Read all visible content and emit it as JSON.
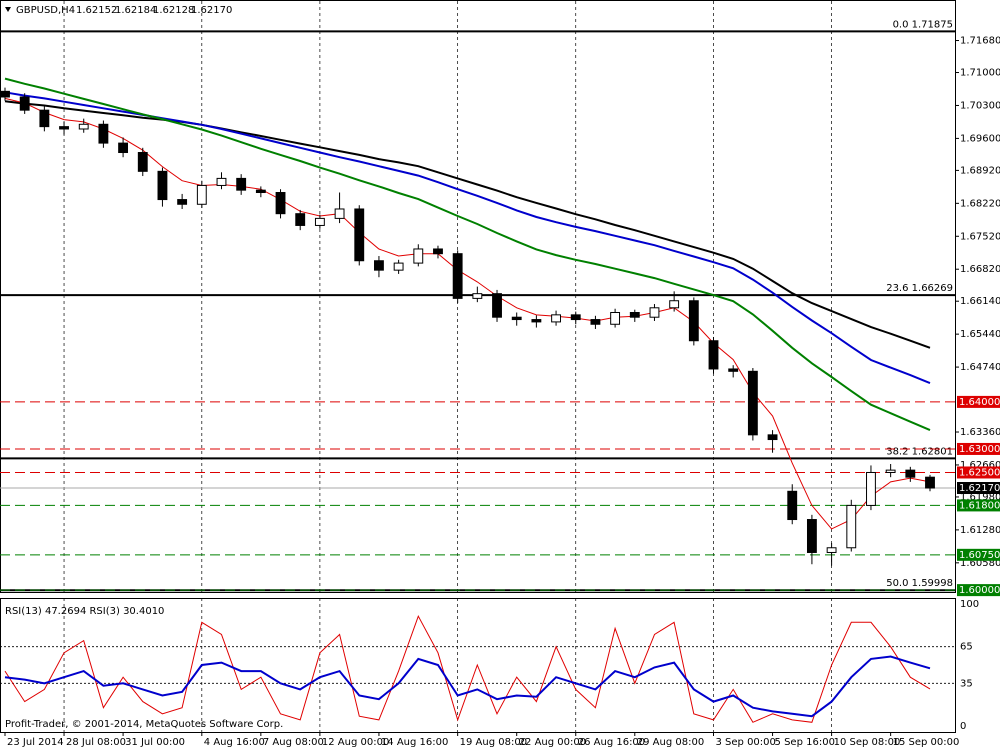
{
  "chart_data": {
    "type": "candlestick",
    "title": "GBPUSD,H4",
    "quote": [
      {
        "value": 1.62152,
        "label": "1.62152"
      },
      {
        "value": 1.62184,
        "label": "1.62184"
      },
      {
        "value": 1.62128,
        "label": "1.62128"
      },
      {
        "value": 1.6217,
        "label": "1.62170"
      }
    ],
    "categories": [
      "23 Jul 2014",
      null,
      null,
      "28 Jul 08:00",
      null,
      null,
      "31 Jul 00:00",
      null,
      null,
      null,
      "4 Aug 16:00",
      null,
      null,
      "7 Aug 08:00",
      null,
      null,
      "12 Aug 00:00",
      null,
      null,
      "14 Aug 16:00",
      null,
      null,
      null,
      "19 Aug 08:00",
      null,
      null,
      "22 Aug 00:00",
      null,
      null,
      "26 Aug 16:00",
      null,
      null,
      "29 Aug 08:00",
      null,
      null,
      null,
      "3 Sep 00:00",
      null,
      null,
      "5 Sep 16:00",
      null,
      null,
      "10 Sep 08:00",
      null,
      null,
      "15 Sep 00:00",
      null,
      null
    ],
    "open": [
      1.706,
      1.7048,
      1.702,
      1.6985,
      1.698,
      1.699,
      1.695,
      1.693,
      1.689,
      1.683,
      1.682,
      1.686,
      1.6875,
      1.685,
      1.6845,
      1.68,
      1.6775,
      1.679,
      1.681,
      1.67,
      1.668,
      1.6695,
      1.6725,
      1.6715,
      1.662,
      1.663,
      1.658,
      1.6575,
      1.657,
      1.6585,
      1.6575,
      1.6565,
      1.659,
      1.658,
      1.66,
      1.6615,
      1.653,
      1.647,
      1.6465,
      1.633,
      1.621,
      1.615,
      1.608,
      1.609,
      1.618,
      1.625,
      1.6255,
      1.624
    ],
    "high": [
      1.7068,
      1.7056,
      1.7028,
      1.6995,
      1.7002,
      1.6998,
      1.6962,
      1.694,
      1.6898,
      1.6842,
      1.687,
      1.6888,
      1.6884,
      1.6858,
      1.6852,
      1.6808,
      1.6798,
      1.6845,
      1.6818,
      1.671,
      1.6702,
      1.6735,
      1.6732,
      1.6722,
      1.6645,
      1.6638,
      1.659,
      1.6584,
      1.6594,
      1.6592,
      1.6583,
      1.6598,
      1.6596,
      1.6608,
      1.6635,
      1.6622,
      1.6538,
      1.6478,
      1.6472,
      1.634,
      1.6225,
      1.616,
      1.61,
      1.6192,
      1.6265,
      1.6268,
      1.6262,
      1.6245
    ],
    "low": [
      1.704,
      1.7012,
      1.6975,
      1.6968,
      1.6972,
      1.694,
      1.692,
      1.688,
      1.6815,
      1.681,
      1.6812,
      1.6852,
      1.684,
      1.6835,
      1.679,
      1.6765,
      1.6768,
      1.678,
      1.669,
      1.6665,
      1.6672,
      1.6688,
      1.6705,
      1.661,
      1.6612,
      1.657,
      1.6562,
      1.6558,
      1.6562,
      1.6565,
      1.6555,
      1.6558,
      1.657,
      1.6572,
      1.6592,
      1.652,
      1.646,
      1.6452,
      1.6318,
      1.6292,
      1.614,
      1.6055,
      1.6052,
      1.6082,
      1.617,
      1.624,
      1.623,
      1.621
    ],
    "close": [
      1.7048,
      1.702,
      1.6985,
      1.698,
      1.699,
      1.695,
      1.693,
      1.689,
      1.683,
      1.682,
      1.686,
      1.6875,
      1.685,
      1.6845,
      1.68,
      1.6775,
      1.679,
      1.681,
      1.67,
      1.668,
      1.6695,
      1.6725,
      1.6715,
      1.662,
      1.663,
      1.658,
      1.6575,
      1.657,
      1.6585,
      1.6575,
      1.6565,
      1.659,
      1.658,
      1.66,
      1.6615,
      1.653,
      1.647,
      1.6465,
      1.633,
      1.632,
      1.615,
      1.608,
      1.609,
      1.618,
      1.625,
      1.6255,
      1.624,
      1.6217
    ],
    "lines": [
      {
        "color": "#000000",
        "values": [
          1.7039,
          1.7034,
          1.703,
          1.7024,
          1.7019,
          1.7014,
          1.7009,
          1.7004,
          1.7,
          1.6995,
          1.6989,
          1.6981,
          1.6973,
          1.6965,
          1.6957,
          1.6949,
          1.6941,
          1.6933,
          1.6925,
          1.6916,
          1.6909,
          1.6901,
          1.6888,
          1.6875,
          1.6862,
          1.6849,
          1.6835,
          1.6823,
          1.6811,
          1.6799,
          1.6788,
          1.6776,
          1.6765,
          1.6753,
          1.6741,
          1.6729,
          1.6717,
          1.6704,
          1.6683,
          1.6657,
          1.6631,
          1.661,
          1.6593,
          1.6576,
          1.6559,
          1.6545,
          1.653,
          1.6515
        ]
      },
      {
        "color": "#0000cc",
        "values": [
          1.7058,
          1.7051,
          1.7045,
          1.7038,
          1.7031,
          1.7024,
          1.7017,
          1.701,
          1.7003,
          1.6996,
          1.6989,
          1.698,
          1.697,
          1.696,
          1.695,
          1.694,
          1.693,
          1.692,
          1.6911,
          1.6901,
          1.6891,
          1.6881,
          1.6867,
          1.6852,
          1.6838,
          1.6823,
          1.6807,
          1.6793,
          1.6782,
          1.6772,
          1.6763,
          1.6753,
          1.6743,
          1.6733,
          1.6721,
          1.6709,
          1.6697,
          1.6684,
          1.666,
          1.6632,
          1.6602,
          1.6573,
          1.6546,
          1.6517,
          1.6489,
          1.6473,
          1.6457,
          1.644
        ]
      },
      {
        "color": "#008000",
        "values": [
          1.7087,
          1.7076,
          1.7066,
          1.7055,
          1.7044,
          1.7033,
          1.7022,
          1.7011,
          1.7001,
          1.699,
          1.6979,
          1.6966,
          1.6952,
          1.6938,
          1.6925,
          1.6912,
          1.6898,
          1.6885,
          1.6871,
          1.6858,
          1.6844,
          1.6831,
          1.6813,
          1.6795,
          1.6778,
          1.6759,
          1.6741,
          1.6724,
          1.6712,
          1.6702,
          1.6693,
          1.6683,
          1.6673,
          1.6663,
          1.6651,
          1.6639,
          1.6627,
          1.6614,
          1.6586,
          1.6551,
          1.6515,
          1.6482,
          1.6453,
          1.6423,
          1.6394,
          1.6376,
          1.6358,
          1.634
        ]
      },
      {
        "color": "#e00000",
        "values": [
          1.7045,
          1.7035,
          1.7015,
          1.7,
          1.6995,
          1.698,
          1.696,
          1.6935,
          1.69,
          1.687,
          1.686,
          1.6862,
          1.6858,
          1.6852,
          1.683,
          1.6805,
          1.6795,
          1.68,
          1.676,
          1.6725,
          1.671,
          1.6715,
          1.6715,
          1.668,
          1.6655,
          1.6625,
          1.66,
          1.6585,
          1.6582,
          1.6578,
          1.6572,
          1.658,
          1.6582,
          1.659,
          1.66,
          1.657,
          1.6525,
          1.649,
          1.642,
          1.637,
          1.627,
          1.618,
          1.613,
          1.615,
          1.62,
          1.623,
          1.6238,
          1.623
        ]
      }
    ],
    "ylim": [
      1.5996,
      1.7252
    ],
    "yticks": [
      {
        "value": 1.7168,
        "label": "1.71680"
      },
      {
        "value": 1.71,
        "label": "1.71000"
      },
      {
        "value": 1.703,
        "label": "1.70300"
      },
      {
        "value": 1.696,
        "label": "1.69600"
      },
      {
        "value": 1.6892,
        "label": "1.68920"
      },
      {
        "value": 1.6822,
        "label": "1.68220"
      },
      {
        "value": 1.6752,
        "label": "1.67520"
      },
      {
        "value": 1.6682,
        "label": "1.66820"
      },
      {
        "value": 1.6614,
        "label": "1.66140"
      },
      {
        "value": 1.6544,
        "label": "1.65440"
      },
      {
        "value": 1.6474,
        "label": "1.64740"
      },
      {
        "value": 1.6336,
        "label": "1.63360"
      },
      {
        "value": 1.6266,
        "label": "1.62660"
      },
      {
        "value": 1.6198,
        "label": "1.61980"
      },
      {
        "value": 1.6128,
        "label": "1.61280"
      },
      {
        "value": 1.6058,
        "label": "1.60580"
      }
    ],
    "levels": [
      {
        "value": 1.71875,
        "label": "0.0 1.71875",
        "color": "#000000",
        "style": "fib"
      },
      {
        "value": 1.66269,
        "label": "23.6 1.66269",
        "color": "#000000",
        "style": "fib"
      },
      {
        "value": 1.62801,
        "label": "38.2 1.62801",
        "color": "#000000",
        "style": "fib"
      },
      {
        "value": 1.59998,
        "label": "50.0 1.59998",
        "color": "#000000",
        "style": "fib"
      },
      {
        "value": 1.64,
        "label": "1.64000",
        "color": "#dd0000",
        "style": "dashed"
      },
      {
        "value": 1.63,
        "label": "1.63000",
        "color": "#dd0000",
        "style": "dashed"
      },
      {
        "value": 1.625,
        "label": "1.62500",
        "color": "#dd0000",
        "style": "dashed"
      },
      {
        "value": 1.618,
        "label": "1.61800",
        "color": "#008000",
        "style": "dashed"
      },
      {
        "value": 1.6075,
        "label": "1.60750",
        "color": "#008000",
        "style": "dashed"
      },
      {
        "value": 1.6,
        "label": "1.60000",
        "color": "#008000",
        "style": "dashed"
      }
    ],
    "current_price": {
      "value": 1.6217,
      "label": "1.62170"
    },
    "rsi": {
      "label": "RSI(13) 47.2694  RSI(3) 30.4010",
      "ylim": [
        0,
        100
      ],
      "yticks": [
        100,
        65,
        35,
        0
      ],
      "series": [
        {
          "color": "#e00000",
          "values": [
            45,
            20,
            30,
            60,
            70,
            15,
            40,
            20,
            10,
            15,
            85,
            75,
            30,
            40,
            10,
            5,
            60,
            75,
            8,
            5,
            45,
            90,
            60,
            5,
            50,
            10,
            40,
            20,
            65,
            30,
            15,
            80,
            35,
            75,
            85,
            10,
            5,
            30,
            3,
            10,
            5,
            3,
            50,
            85,
            85,
            65,
            40,
            30.401
          ]
        },
        {
          "color": "#0000cc",
          "values": [
            40,
            38,
            35,
            40,
            45,
            33,
            35,
            30,
            25,
            28,
            50,
            52,
            45,
            45,
            35,
            30,
            40,
            45,
            25,
            22,
            35,
            55,
            50,
            25,
            30,
            22,
            25,
            24,
            40,
            35,
            30,
            45,
            40,
            48,
            52,
            30,
            20,
            25,
            15,
            12,
            10,
            8,
            20,
            40,
            55,
            57,
            52,
            47.2694
          ]
        }
      ]
    },
    "copyright": "Profit-Trader, © 2001-2014, MetaQuotes Software Corp."
  }
}
